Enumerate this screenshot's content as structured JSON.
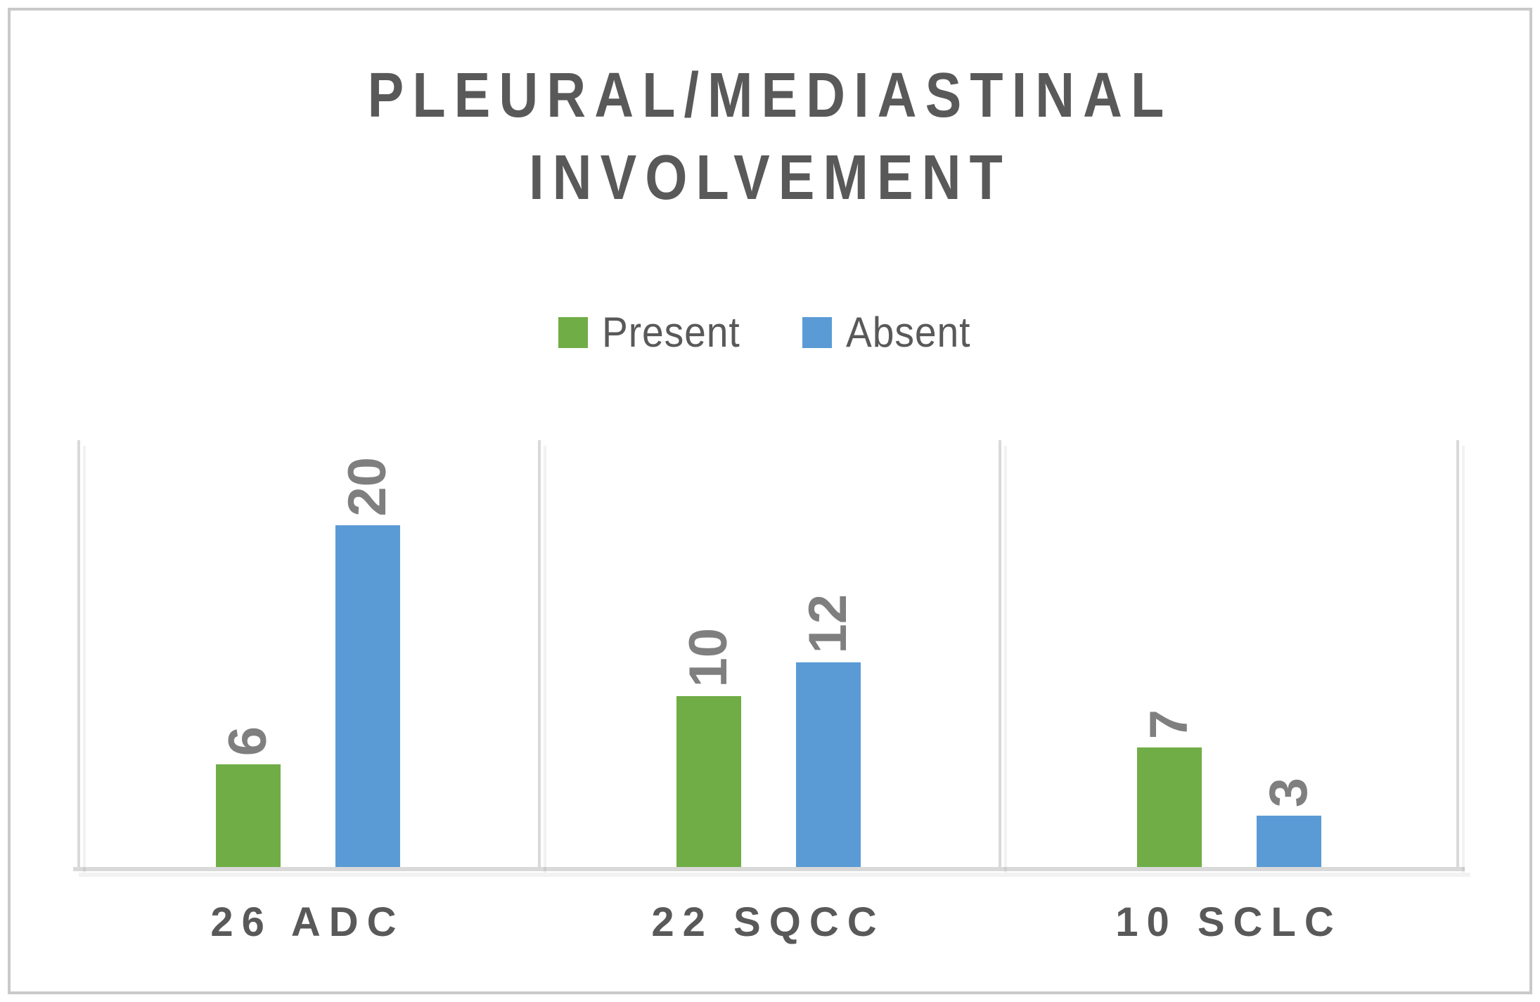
{
  "title": {
    "line1": "PLEURAL/MEDIASTINAL",
    "line2": "INVOLVEMENT"
  },
  "legend": {
    "items": [
      {
        "label": "Present",
        "color": "#70AD47",
        "marker": "green-square-icon"
      },
      {
        "label": "Absent",
        "color": "#5B9BD5",
        "marker": "blue-square-icon"
      }
    ]
  },
  "chart_data": {
    "type": "bar",
    "title": "PLEURAL/MEDIASTINAL INVOLVEMENT",
    "categories": [
      "26 ADC",
      "22 SQCC",
      "10 SCLC"
    ],
    "series": [
      {
        "name": "Present",
        "color": "#70AD47",
        "values": [
          6,
          10,
          7
        ]
      },
      {
        "name": "Absent",
        "color": "#5B9BD5",
        "values": [
          20,
          12,
          3
        ]
      }
    ],
    "data_labels": [
      {
        "category": "26 ADC",
        "Present": "6",
        "Absent": "20"
      },
      {
        "category": "22 SQCC",
        "Present": "10",
        "Absent": "12"
      },
      {
        "category": "10 SCLC",
        "Present": "7",
        "Absent": "3"
      }
    ],
    "ylim": [
      0,
      25
    ],
    "xlabel": "",
    "ylabel": "",
    "grid": "vertical category separators only",
    "legend_position": "top-center",
    "data_label_style": "rotated 90deg counterclockwise, above bars"
  },
  "colors": {
    "title_text": "#595959",
    "category_text": "#595959",
    "legend_text": "#595959",
    "data_label_text": "#7F7F7F",
    "axis_and_gridlines": "#D9D9D9",
    "frame_border": "#C9C9C9",
    "background": "#FFFFFF"
  }
}
